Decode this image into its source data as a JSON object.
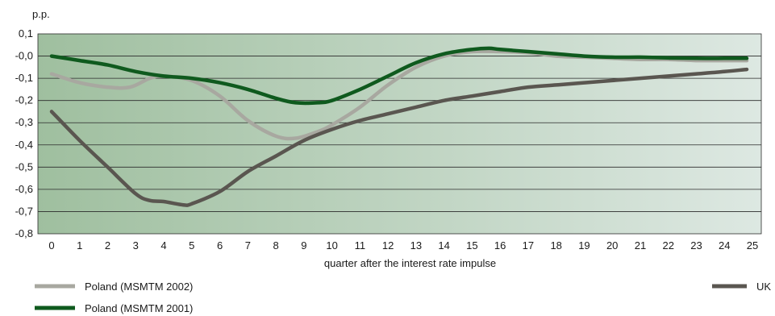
{
  "chart_data": {
    "type": "line",
    "title": "",
    "unit_label": "p.p.",
    "xlabel": "quarter after the interest rate impulse",
    "ylabel": "",
    "x": [
      0,
      1,
      2,
      3,
      4,
      5,
      6,
      7,
      8,
      9,
      10,
      11,
      12,
      13,
      14,
      15,
      16,
      17,
      18,
      19,
      20,
      21,
      22,
      23,
      24,
      25
    ],
    "xlim": [
      0,
      25
    ],
    "ylim": [
      -0.8,
      0.1
    ],
    "y_ticks": [
      0.1,
      -0.0,
      -0.1,
      -0.2,
      -0.3,
      -0.4,
      -0.5,
      -0.6,
      -0.7,
      -0.8
    ],
    "y_tick_labels": [
      "0,1",
      "-0,0",
      "-0,1",
      "-0,2",
      "-0,3",
      "-0,4",
      "-0,5",
      "-0,6",
      "-0,7",
      "-0,8"
    ],
    "x_tick_labels": [
      "0",
      "1",
      "2",
      "3",
      "4",
      "5",
      "6",
      "7",
      "8",
      "9",
      "10",
      "11",
      "12",
      "13",
      "14",
      "15",
      "16",
      "17",
      "18",
      "19",
      "20",
      "21",
      "22",
      "23",
      "24",
      "25"
    ],
    "grid": "horizontal",
    "series": [
      {
        "name": "Poland (MSMTM 2002)",
        "color": "#a8a8a0",
        "x": [
          0,
          1,
          2,
          2.8,
          3.5,
          4,
          5,
          6,
          7,
          8,
          8.7,
          9.5,
          10,
          11,
          12,
          13,
          14,
          15,
          16,
          17,
          18,
          19,
          20,
          21,
          22,
          23,
          24,
          24.8
        ],
        "values": [
          -0.08,
          -0.12,
          -0.14,
          -0.14,
          -0.1,
          -0.09,
          -0.11,
          -0.18,
          -0.29,
          -0.36,
          -0.37,
          -0.34,
          -0.31,
          -0.23,
          -0.13,
          -0.05,
          0.0,
          0.02,
          0.02,
          0.015,
          0.0,
          -0.005,
          -0.01,
          -0.015,
          -0.015,
          -0.02,
          -0.02,
          -0.02
        ]
      },
      {
        "name": "Poland (MSMTM 2001)",
        "color": "#0f5a1e",
        "x": [
          0,
          1,
          2,
          3,
          4,
          5,
          6,
          7,
          8,
          8.7,
          9.5,
          10,
          11,
          12,
          13,
          14,
          15,
          15.6,
          16,
          17,
          18,
          19,
          20,
          21,
          22,
          23,
          24,
          24.8
        ],
        "values": [
          0.0,
          -0.02,
          -0.04,
          -0.07,
          -0.09,
          -0.1,
          -0.12,
          -0.15,
          -0.19,
          -0.21,
          -0.21,
          -0.2,
          -0.15,
          -0.09,
          -0.03,
          0.01,
          0.03,
          0.035,
          0.03,
          0.02,
          0.01,
          0.0,
          -0.005,
          -0.005,
          -0.008,
          -0.01,
          -0.01,
          -0.01
        ]
      },
      {
        "name": "UK",
        "color": "#5a5650",
        "x": [
          0,
          1,
          2,
          3,
          3.5,
          4,
          4.7,
          5,
          6,
          7,
          8,
          9,
          10,
          11,
          12,
          13,
          14,
          15,
          16,
          17,
          18,
          19,
          20,
          21,
          22,
          23,
          24,
          24.8
        ],
        "values": [
          -0.25,
          -0.38,
          -0.5,
          -0.62,
          -0.65,
          -0.655,
          -0.67,
          -0.665,
          -0.61,
          -0.52,
          -0.45,
          -0.38,
          -0.33,
          -0.29,
          -0.26,
          -0.23,
          -0.2,
          -0.18,
          -0.16,
          -0.14,
          -0.13,
          -0.12,
          -0.11,
          -0.1,
          -0.09,
          -0.08,
          -0.07,
          -0.06
        ]
      }
    ],
    "legend": {
      "placement": "bottom",
      "left_items": [
        "Poland (MSMTM 2002)",
        "Poland (MSMTM 2001)"
      ],
      "right_items": [
        "UK"
      ]
    },
    "background_gradient": [
      "#9fbf9f",
      "#dde8e2"
    ]
  }
}
